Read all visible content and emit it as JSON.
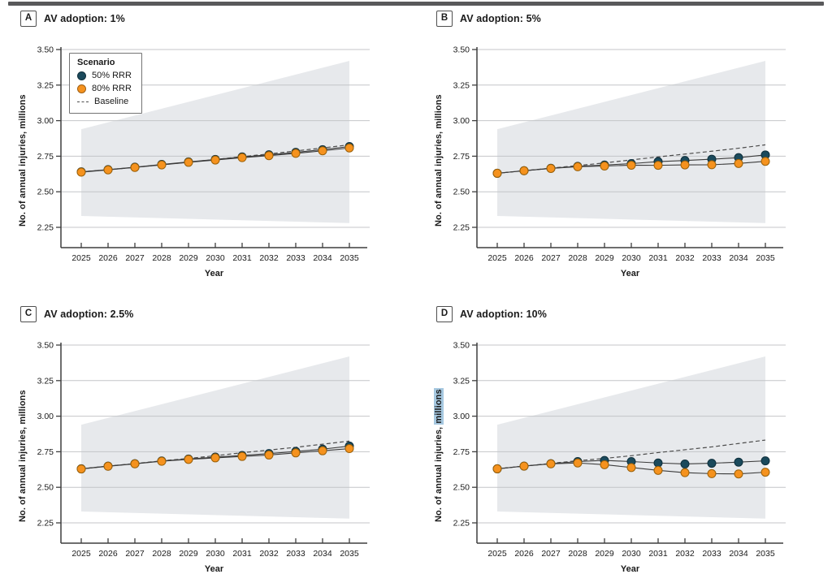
{
  "page": {
    "top_bar_color": "#59595b",
    "background": "#ffffff"
  },
  "figure": {
    "xlabel": "Year",
    "ylabel": "No. of annual injuries, millions",
    "legend": {
      "title": "Scenario",
      "items": [
        {
          "label": "50% RRR",
          "marker": "dot",
          "color": "#1b4a5c"
        },
        {
          "label": "80% RRR",
          "marker": "dot",
          "color": "#f5921e"
        },
        {
          "label": "Baseline",
          "marker": "dashed-line",
          "color": "#4d4d4d"
        }
      ]
    }
  },
  "chart_data": [
    {
      "type": "line",
      "panel_label": "A",
      "title": "AV adoption: 1%",
      "xlabel": "Year",
      "ylabel": "No. of annual injuries, millions",
      "legend_visible": true,
      "legend_position": "upper-left",
      "x": [
        2025,
        2026,
        2027,
        2028,
        2029,
        2030,
        2031,
        2032,
        2033,
        2034,
        2035
      ],
      "yticks": [
        3.5,
        3.25,
        3.0,
        2.75,
        2.5,
        2.25
      ],
      "ylim": [
        2.1,
        3.55
      ],
      "grid": true,
      "series": [
        {
          "name": "Baseline",
          "style": "dashed",
          "color": "#4d4d4d",
          "values": [
            2.64,
            2.655,
            2.672,
            2.69,
            2.708,
            2.727,
            2.747,
            2.766,
            2.787,
            2.808,
            2.83
          ]
        },
        {
          "name": "50% RRR",
          "style": "circle-marker",
          "color": "#1b4a5c",
          "edge": "#0d2e3b",
          "values": [
            2.64,
            2.656,
            2.673,
            2.692,
            2.71,
            2.727,
            2.745,
            2.76,
            2.777,
            2.796,
            2.818
          ]
        },
        {
          "name": "80% RRR",
          "style": "circle-marker",
          "color": "#f5921e",
          "edge": "#9a6008",
          "values": [
            2.638,
            2.654,
            2.671,
            2.689,
            2.707,
            2.723,
            2.74,
            2.754,
            2.77,
            2.788,
            2.808
          ]
        }
      ],
      "uncertainty_band": {
        "x": [
          2025,
          2035
        ],
        "upper": [
          2.94,
          3.42
        ],
        "lower": [
          2.33,
          2.28
        ],
        "color": "#e7e9ec"
      }
    },
    {
      "type": "line",
      "panel_label": "B",
      "title": "AV adoption: 5%",
      "xlabel": "Year",
      "ylabel": "No. of annual injuries, millions",
      "legend_visible": false,
      "x": [
        2025,
        2026,
        2027,
        2028,
        2029,
        2030,
        2031,
        2032,
        2033,
        2034,
        2035
      ],
      "yticks": [
        3.5,
        3.25,
        3.0,
        2.75,
        2.5,
        2.25
      ],
      "ylim": [
        2.1,
        3.55
      ],
      "grid": true,
      "series": [
        {
          "name": "Baseline",
          "style": "dashed",
          "color": "#4d4d4d",
          "values": [
            2.63,
            2.648,
            2.666,
            2.684,
            2.703,
            2.724,
            2.745,
            2.765,
            2.785,
            2.806,
            2.83
          ]
        },
        {
          "name": "50% RRR",
          "style": "circle-marker",
          "color": "#1b4a5c",
          "edge": "#0d2e3b",
          "values": [
            2.63,
            2.648,
            2.665,
            2.679,
            2.688,
            2.698,
            2.712,
            2.72,
            2.729,
            2.74,
            2.759
          ]
        },
        {
          "name": "80% RRR",
          "style": "circle-marker",
          "color": "#f5921e",
          "edge": "#9a6008",
          "values": [
            2.63,
            2.648,
            2.664,
            2.676,
            2.681,
            2.687,
            2.686,
            2.689,
            2.69,
            2.699,
            2.714
          ]
        }
      ],
      "uncertainty_band": {
        "x": [
          2025,
          2035
        ],
        "upper": [
          2.94,
          3.42
        ],
        "lower": [
          2.33,
          2.28
        ],
        "color": "#e7e9ec"
      }
    },
    {
      "type": "line",
      "panel_label": "C",
      "title": "AV adoption: 2.5%",
      "xlabel": "Year",
      "ylabel": "No. of annual injuries, millions",
      "legend_visible": false,
      "x": [
        2025,
        2026,
        2027,
        2028,
        2029,
        2030,
        2031,
        2032,
        2033,
        2034,
        2035
      ],
      "yticks": [
        3.5,
        3.25,
        3.0,
        2.75,
        2.5,
        2.25
      ],
      "ylim": [
        2.1,
        3.55
      ],
      "grid": true,
      "series": [
        {
          "name": "Baseline",
          "style": "dashed",
          "color": "#4d4d4d",
          "values": [
            2.63,
            2.649,
            2.667,
            2.686,
            2.703,
            2.722,
            2.743,
            2.762,
            2.781,
            2.803,
            2.825
          ]
        },
        {
          "name": "50% RRR",
          "style": "circle-marker",
          "color": "#1b4a5c",
          "edge": "#0d2e3b",
          "values": [
            2.63,
            2.649,
            2.666,
            2.685,
            2.699,
            2.712,
            2.724,
            2.737,
            2.752,
            2.768,
            2.79
          ]
        },
        {
          "name": "80% RRR",
          "style": "circle-marker",
          "color": "#f5921e",
          "edge": "#9a6008",
          "values": [
            2.629,
            2.648,
            2.665,
            2.683,
            2.696,
            2.707,
            2.717,
            2.727,
            2.742,
            2.757,
            2.772
          ]
        }
      ],
      "uncertainty_band": {
        "x": [
          2025,
          2035
        ],
        "upper": [
          2.94,
          3.42
        ],
        "lower": [
          2.33,
          2.28
        ],
        "color": "#e7e9ec"
      }
    },
    {
      "type": "line",
      "panel_label": "D",
      "title": "AV adoption: 10%",
      "xlabel": "Year",
      "ylabel": "No. of annual injuries, millions",
      "ylabel_highlight": "millions",
      "highlight_color": "#a6c8e0",
      "legend_visible": false,
      "x": [
        2025,
        2026,
        2027,
        2028,
        2029,
        2030,
        2031,
        2032,
        2033,
        2034,
        2035
      ],
      "yticks": [
        3.5,
        3.25,
        3.0,
        2.75,
        2.5,
        2.25
      ],
      "ylim": [
        2.1,
        3.55
      ],
      "grid": true,
      "series": [
        {
          "name": "Baseline",
          "style": "dashed",
          "color": "#4d4d4d",
          "values": [
            2.63,
            2.649,
            2.668,
            2.687,
            2.703,
            2.722,
            2.744,
            2.764,
            2.784,
            2.808,
            2.832
          ]
        },
        {
          "name": "50% RRR",
          "style": "circle-marker",
          "color": "#1b4a5c",
          "edge": "#0d2e3b",
          "values": [
            2.63,
            2.649,
            2.666,
            2.681,
            2.689,
            2.681,
            2.671,
            2.664,
            2.669,
            2.677,
            2.686
          ]
        },
        {
          "name": "80% RRR",
          "style": "circle-marker",
          "color": "#f5921e",
          "edge": "#9a6008",
          "values": [
            2.63,
            2.649,
            2.665,
            2.671,
            2.659,
            2.639,
            2.619,
            2.603,
            2.596,
            2.594,
            2.606
          ]
        }
      ],
      "uncertainty_band": {
        "x": [
          2025,
          2035
        ],
        "upper": [
          2.94,
          3.42
        ],
        "lower": [
          2.33,
          2.28
        ],
        "color": "#e7e9ec"
      }
    }
  ]
}
